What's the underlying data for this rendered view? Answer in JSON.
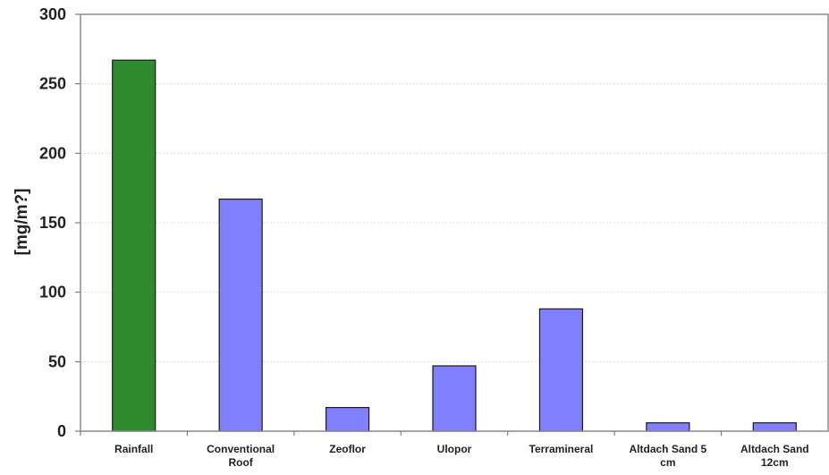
{
  "chart_data": {
    "type": "bar",
    "title": "",
    "xlabel": "",
    "ylabel": "[mg/m?]",
    "ylim": [
      0,
      300
    ],
    "yticks": [
      0,
      50,
      100,
      150,
      200,
      250,
      300
    ],
    "grid": true,
    "categories": [
      [
        "Rainfall"
      ],
      [
        "Conventional",
        "Roof"
      ],
      [
        "Zeoflor"
      ],
      [
        "Ulopor"
      ],
      [
        "Terramineral"
      ],
      [
        "Altdach Sand 5",
        "cm"
      ],
      [
        "Altdach Sand",
        "12cm"
      ]
    ],
    "values": [
      267,
      167,
      17,
      47,
      88,
      6,
      6
    ],
    "colors": [
      "#2e8b2e",
      "#8080ff",
      "#8080ff",
      "#8080ff",
      "#8080ff",
      "#8080ff",
      "#8080ff"
    ]
  }
}
